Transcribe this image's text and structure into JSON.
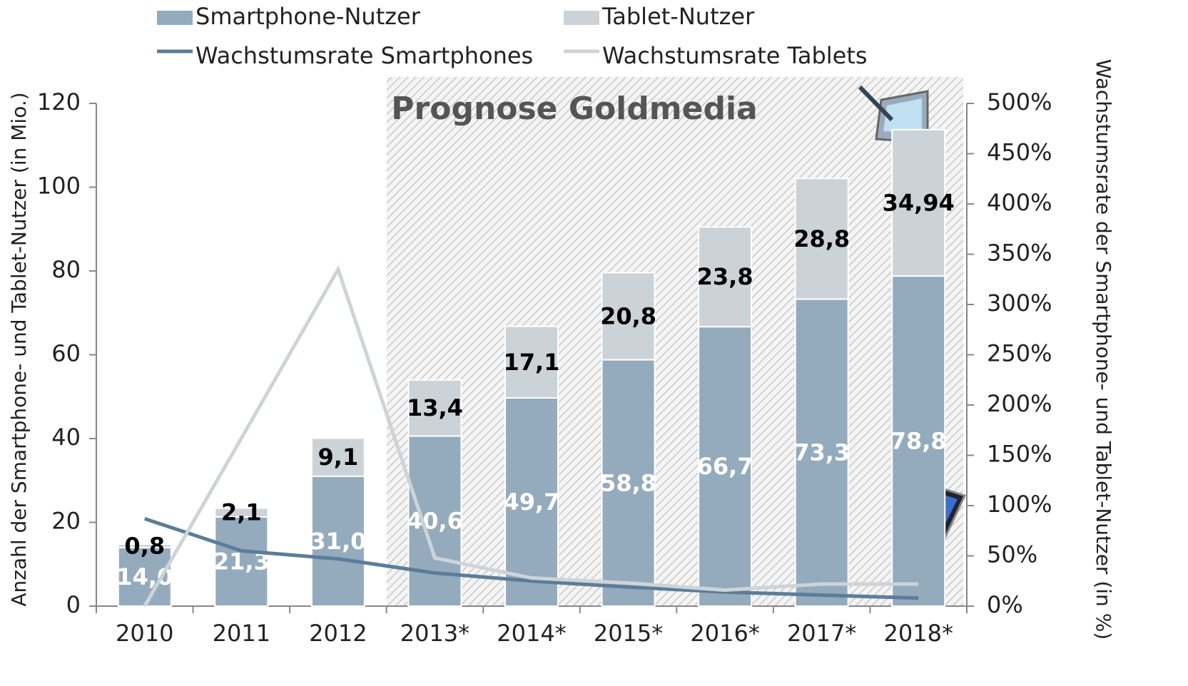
{
  "chart_data": {
    "type": "bar",
    "stacked": true,
    "annotation": "Prognose Goldmedia",
    "y_label": "Anzahl der Smartphone- und Tablet-Nutzer (in Mio.)",
    "y2_label": "Wachstumsrate der Smartphone- und Tablet-Nutzer (in %)",
    "categories": [
      "2010",
      "2011",
      "2012",
      "2013*",
      "2014*",
      "2015*",
      "2016*",
      "2017*",
      "2018*"
    ],
    "series": [
      {
        "name": "Smartphone-Nutzer",
        "type": "bar",
        "color": "#94abbd",
        "values": [
          14.0,
          21.3,
          31.0,
          40.6,
          49.7,
          58.8,
          66.7,
          73.3,
          78.8
        ],
        "value_labels": [
          "14,0",
          "21,3",
          "31,0",
          "40,6",
          "49,7",
          "58,8",
          "66,7",
          "73,3",
          "78,8"
        ]
      },
      {
        "name": "Tablet-Nutzer",
        "type": "bar",
        "color": "#ccd3d8",
        "values": [
          0.8,
          2.1,
          9.1,
          13.4,
          17.1,
          20.8,
          23.8,
          28.8,
          34.94
        ],
        "value_labels": [
          "0,8",
          "2,1",
          "9,1",
          "13,4",
          "17,1",
          "20,8",
          "23,8",
          "28,8",
          "34,94"
        ]
      },
      {
        "name": "Wachstumsrate Smartphones",
        "type": "line",
        "axis": "y2",
        "color": "#5b7d99",
        "values": [
          87,
          55,
          47,
          33,
          25,
          19,
          14,
          11,
          8
        ]
      },
      {
        "name": "Wachstumsrate Tablets",
        "type": "line",
        "axis": "y2",
        "color": "#cdd4d9",
        "values": [
          0,
          167,
          335,
          48,
          28,
          23,
          16,
          22,
          22
        ]
      }
    ],
    "ylim": [
      0,
      120
    ],
    "yticks": [
      0,
      20,
      40,
      60,
      80,
      100,
      120
    ],
    "y2lim": [
      0,
      500
    ],
    "y2ticks": [
      {
        "value": 0,
        "label": "0%"
      },
      {
        "value": 50,
        "label": "50%"
      },
      {
        "value": 100,
        "label": "100%"
      },
      {
        "value": 150,
        "label": "150%"
      },
      {
        "value": 200,
        "label": "200%"
      },
      {
        "value": 250,
        "label": "250%"
      },
      {
        "value": 300,
        "label": "300%"
      },
      {
        "value": 350,
        "label": "350%"
      },
      {
        "value": 400,
        "label": "400%"
      },
      {
        "value": 450,
        "label": "450%"
      },
      {
        "value": 500,
        "label": "500%"
      }
    ]
  }
}
